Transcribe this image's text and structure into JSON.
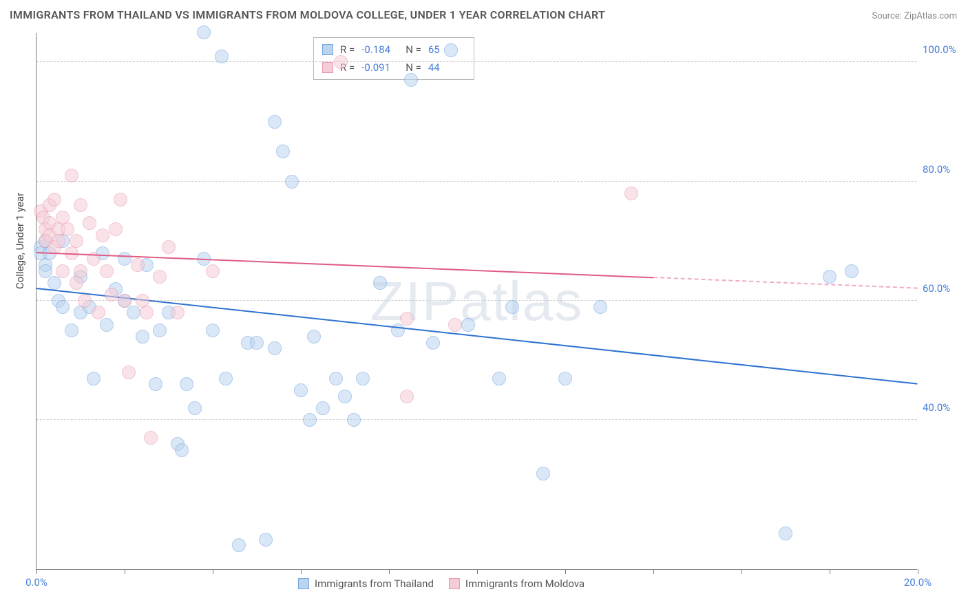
{
  "title": "IMMIGRANTS FROM THAILAND VS IMMIGRANTS FROM MOLDOVA COLLEGE, UNDER 1 YEAR CORRELATION CHART",
  "source": "Source: ZipAtlas.com",
  "ylabel": "College, Under 1 year",
  "watermark": "ZIPatlas",
  "chart": {
    "type": "scatter",
    "background_color": "#ffffff",
    "grid_color": "#d0d0d0",
    "axis_color": "#777777",
    "label_color": "#4a7fd8",
    "xlim": [
      0,
      20
    ],
    "ylim": [
      15,
      105
    ],
    "xticks": [
      0,
      2,
      4,
      6,
      8,
      10,
      12,
      14,
      16,
      18,
      20
    ],
    "xtick_labels": {
      "0": "0.0%",
      "20": "20.0%"
    },
    "yticks": [
      40,
      60,
      80,
      100
    ],
    "ytick_labels": [
      "40.0%",
      "60.0%",
      "80.0%",
      "100.0%"
    ],
    "marker_radius": 10,
    "marker_opacity": 0.55,
    "series": [
      {
        "name": "Immigrants from Thailand",
        "fill": "#bcd4ef",
        "stroke": "#6ea3e0",
        "line_color": "#2e72d2",
        "R": "-0.184",
        "N": "65",
        "trend": {
          "x1": 0,
          "y1": 62,
          "x2": 20,
          "y2": 46,
          "width": 2.5,
          "dashed_from": null
        },
        "points": [
          [
            0.1,
            69
          ],
          [
            0.1,
            68
          ],
          [
            0.2,
            70
          ],
          [
            0.2,
            66
          ],
          [
            0.2,
            65
          ],
          [
            0.3,
            68
          ],
          [
            0.4,
            63
          ],
          [
            0.5,
            60
          ],
          [
            0.6,
            59
          ],
          [
            0.6,
            70
          ],
          [
            0.8,
            55
          ],
          [
            1.0,
            58
          ],
          [
            1.0,
            64
          ],
          [
            1.2,
            59
          ],
          [
            1.3,
            47
          ],
          [
            1.5,
            68
          ],
          [
            1.6,
            56
          ],
          [
            1.8,
            62
          ],
          [
            2.0,
            67
          ],
          [
            2.0,
            60
          ],
          [
            2.2,
            58
          ],
          [
            2.4,
            54
          ],
          [
            2.5,
            66
          ],
          [
            2.7,
            46
          ],
          [
            2.8,
            55
          ],
          [
            3.0,
            58
          ],
          [
            3.2,
            36
          ],
          [
            3.3,
            35
          ],
          [
            3.4,
            46
          ],
          [
            3.6,
            42
          ],
          [
            3.8,
            105
          ],
          [
            3.8,
            67
          ],
          [
            4.0,
            55
          ],
          [
            4.2,
            101
          ],
          [
            4.3,
            47
          ],
          [
            4.6,
            19
          ],
          [
            4.8,
            53
          ],
          [
            5.0,
            53
          ],
          [
            5.2,
            20
          ],
          [
            5.4,
            52
          ],
          [
            5.4,
            90
          ],
          [
            5.6,
            85
          ],
          [
            5.8,
            80
          ],
          [
            6.0,
            45
          ],
          [
            6.2,
            40
          ],
          [
            6.3,
            54
          ],
          [
            6.5,
            42
          ],
          [
            6.8,
            47
          ],
          [
            7.0,
            44
          ],
          [
            7.2,
            40
          ],
          [
            7.4,
            47
          ],
          [
            7.8,
            63
          ],
          [
            8.2,
            55
          ],
          [
            8.5,
            97
          ],
          [
            9.0,
            53
          ],
          [
            9.4,
            102
          ],
          [
            9.8,
            56
          ],
          [
            10.5,
            47
          ],
          [
            10.8,
            59
          ],
          [
            11.5,
            31
          ],
          [
            12.0,
            47
          ],
          [
            12.8,
            59
          ],
          [
            17.0,
            21
          ],
          [
            18.0,
            64
          ],
          [
            18.5,
            65
          ]
        ]
      },
      {
        "name": "Immigrants from Moldova",
        "fill": "#f6cdd7",
        "stroke": "#e797ad",
        "line_color": "#e05b84",
        "R": "-0.091",
        "N": "44",
        "trend": {
          "x1": 0,
          "y1": 68,
          "x2": 20,
          "y2": 62,
          "width": 2,
          "dashed_from": 14
        },
        "points": [
          [
            0.1,
            75
          ],
          [
            0.15,
            74
          ],
          [
            0.2,
            72
          ],
          [
            0.2,
            70
          ],
          [
            0.3,
            76
          ],
          [
            0.3,
            73
          ],
          [
            0.3,
            71
          ],
          [
            0.4,
            69
          ],
          [
            0.4,
            77
          ],
          [
            0.5,
            72
          ],
          [
            0.5,
            70
          ],
          [
            0.6,
            65
          ],
          [
            0.6,
            74
          ],
          [
            0.7,
            72
          ],
          [
            0.8,
            81
          ],
          [
            0.8,
            68
          ],
          [
            0.9,
            63
          ],
          [
            0.9,
            70
          ],
          [
            1.0,
            76
          ],
          [
            1.0,
            65
          ],
          [
            1.1,
            60
          ],
          [
            1.2,
            73
          ],
          [
            1.3,
            67
          ],
          [
            1.4,
            58
          ],
          [
            1.5,
            71
          ],
          [
            1.6,
            65
          ],
          [
            1.7,
            61
          ],
          [
            1.8,
            72
          ],
          [
            1.9,
            77
          ],
          [
            2.0,
            60
          ],
          [
            2.1,
            48
          ],
          [
            2.3,
            66
          ],
          [
            2.4,
            60
          ],
          [
            2.5,
            58
          ],
          [
            2.6,
            37
          ],
          [
            2.8,
            64
          ],
          [
            3.0,
            69
          ],
          [
            3.2,
            58
          ],
          [
            4.0,
            65
          ],
          [
            6.9,
            100
          ],
          [
            8.4,
            44
          ],
          [
            8.4,
            57
          ],
          [
            9.5,
            56
          ],
          [
            13.5,
            78
          ]
        ]
      }
    ]
  }
}
